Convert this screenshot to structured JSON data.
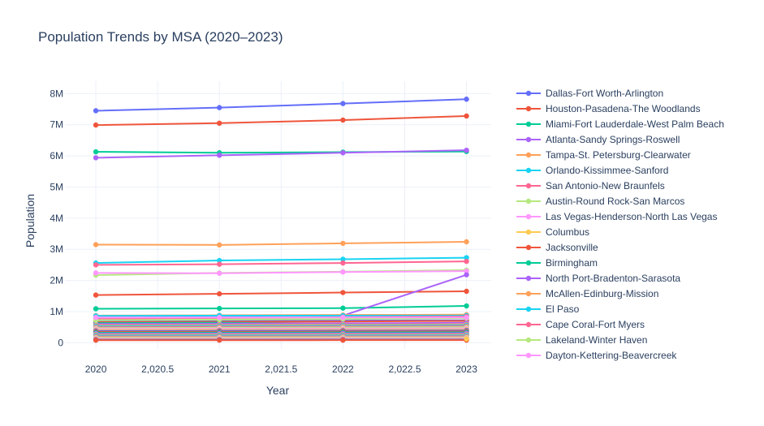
{
  "chart_data": {
    "type": "line",
    "title": "Population Trends by MSA (2020–2023)",
    "xlabel": "Year",
    "ylabel": "Population",
    "x": [
      2020,
      2021,
      2022,
      2023
    ],
    "xlim": [
      2019.75,
      2023.2
    ],
    "ylim": [
      -200000,
      8400000
    ],
    "x_ticks": [
      2020,
      2020.5,
      2021,
      2021.5,
      2022,
      2022.5,
      2023
    ],
    "x_tick_labels": [
      "2020",
      "2,020.5",
      "2021",
      "2,021.5",
      "2022",
      "2,022.5",
      "2023"
    ],
    "y_ticks": [
      0,
      1000000,
      2000000,
      3000000,
      4000000,
      5000000,
      6000000,
      7000000,
      8000000
    ],
    "y_tick_labels": [
      "0",
      "1M",
      "2M",
      "3M",
      "4M",
      "5M",
      "6M",
      "7M",
      "8M"
    ],
    "grid": true,
    "legend_position": "right",
    "series": [
      {
        "name": "Dallas-Fort Worth-Arlington",
        "color": "#636efa",
        "values": [
          7450000,
          7550000,
          7680000,
          7820000
        ]
      },
      {
        "name": "Houston-Pasadena-The Woodlands",
        "color": "#EF553B",
        "values": [
          6990000,
          7050000,
          7150000,
          7280000
        ]
      },
      {
        "name": "Miami-Fort Lauderdale-West Palm Beach",
        "color": "#00cc96",
        "values": [
          6130000,
          6100000,
          6120000,
          6140000
        ]
      },
      {
        "name": "Atlanta-Sandy Springs-Roswell",
        "color": "#ab63fa",
        "values": [
          5940000,
          6020000,
          6100000,
          6180000
        ]
      },
      {
        "name": "Tampa-St. Petersburg-Clearwater",
        "color": "#FFA15A",
        "values": [
          3150000,
          3140000,
          3190000,
          3240000
        ]
      },
      {
        "name": "Orlando-Kissimmee-Sanford",
        "color": "#19d3f3",
        "values": [
          2560000,
          2640000,
          2680000,
          2730000
        ]
      },
      {
        "name": "San Antonio-New Braunfels",
        "color": "#FF6692",
        "values": [
          2500000,
          2520000,
          2560000,
          2610000
        ]
      },
      {
        "name": "Austin-Round Rock-San Marcos",
        "color": "#B6E880",
        "values": [
          2170000,
          2240000,
          2280000,
          2330000
        ]
      },
      {
        "name": "Las Vegas-Henderson-North Las Vegas",
        "color": "#FF97FF",
        "values": [
          2240000,
          2230000,
          2270000,
          2300000
        ]
      },
      {
        "name": "Columbus",
        "color": "#FECB52",
        "values": [
          null,
          null,
          null,
          120000
        ]
      },
      {
        "name": "Jacksonville",
        "color": "#EF553B",
        "values": [
          1530000,
          1570000,
          1610000,
          1650000
        ]
      },
      {
        "name": "Birmingham",
        "color": "#00cc96",
        "values": [
          1090000,
          1100000,
          1110000,
          1180000
        ]
      },
      {
        "name": "North Port-Bradenton-Sarasota",
        "color": "#ab63fa",
        "values": [
          830000,
          850000,
          870000,
          2180000
        ]
      },
      {
        "name": "McAllen-Edinburg-Mission",
        "color": "#FFA15A",
        "values": [
          870000,
          880000,
          890000,
          900000
        ]
      },
      {
        "name": "El Paso",
        "color": "#19d3f3",
        "values": [
          860000,
          870000,
          870000,
          870000
        ]
      },
      {
        "name": "Cape Coral-Fort Myers",
        "color": "#FF6692",
        "values": [
          770000,
          790000,
          820000,
          840000
        ]
      },
      {
        "name": "Lakeland-Winter Haven",
        "color": "#B6E880",
        "values": [
          720000,
          740000,
          760000,
          790000
        ]
      },
      {
        "name": "Dayton-Kettering-Beavercreek",
        "color": "#FF97FF",
        "values": [
          810000,
          810000,
          810000,
          810000
        ]
      }
    ],
    "background_series": [
      {
        "color": "#636efa",
        "values": [
          690000,
          700000,
          710000,
          720000
        ]
      },
      {
        "color": "#EF553B",
        "values": [
          660000,
          670000,
          680000,
          700000
        ]
      },
      {
        "color": "#00cc96",
        "values": [
          630000,
          640000,
          600000,
          480000
        ]
      },
      {
        "color": "#ab63fa",
        "values": [
          600000,
          610000,
          620000,
          640000
        ]
      },
      {
        "color": "#FFA15A",
        "values": [
          560000,
          570000,
          580000,
          590000
        ]
      },
      {
        "color": "#19d3f3",
        "values": [
          530000,
          540000,
          550000,
          560000
        ]
      },
      {
        "color": "#FF6692",
        "values": [
          500000,
          510000,
          520000,
          530000
        ]
      },
      {
        "color": "#B6E880",
        "values": [
          470000,
          480000,
          490000,
          500000
        ]
      },
      {
        "color": "#FF97FF",
        "values": [
          440000,
          450000,
          455000,
          460000
        ]
      },
      {
        "color": "#FECB52",
        "values": [
          410000,
          415000,
          420000,
          425000
        ]
      },
      {
        "color": "#636efa",
        "values": [
          380000,
          385000,
          390000,
          395000
        ]
      },
      {
        "color": "#EF553B",
        "values": [
          350000,
          355000,
          360000,
          365000
        ]
      },
      {
        "color": "#00cc96",
        "values": [
          320000,
          325000,
          330000,
          335000
        ]
      },
      {
        "color": "#ab63fa",
        "values": [
          290000,
          295000,
          300000,
          305000
        ]
      },
      {
        "color": "#FFA15A",
        "values": [
          260000,
          262000,
          265000,
          268000
        ]
      },
      {
        "color": "#19d3f3",
        "values": [
          230000,
          232000,
          235000,
          238000
        ]
      },
      {
        "color": "#FF6692",
        "values": [
          200000,
          202000,
          204000,
          206000
        ]
      },
      {
        "color": "#B6E880",
        "values": [
          170000,
          172000,
          174000,
          176000
        ]
      },
      {
        "color": "#FF97FF",
        "values": [
          140000,
          142000,
          144000,
          146000
        ]
      },
      {
        "color": "#FECB52",
        "values": [
          120000,
          121000,
          122000,
          124000
        ]
      },
      {
        "color": "#636efa",
        "values": [
          100000,
          101000,
          102000,
          103000
        ]
      },
      {
        "color": "#EF553B",
        "values": [
          80000,
          81000,
          82000,
          83000
        ]
      }
    ]
  }
}
